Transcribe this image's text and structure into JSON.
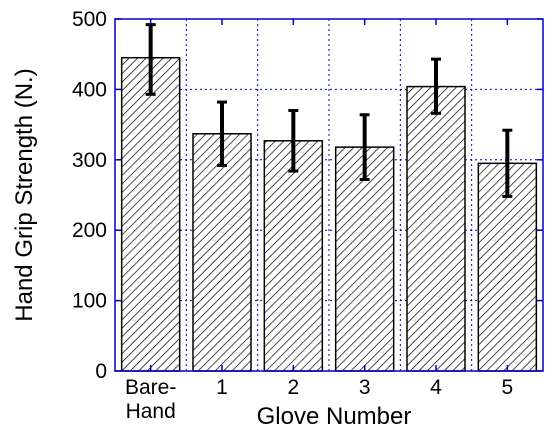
{
  "chart_data": {
    "type": "bar",
    "categories": [
      "Bare-Hand",
      "1",
      "2",
      "3",
      "4",
      "5"
    ],
    "category_label_lines": [
      [
        "Bare-",
        "Hand"
      ],
      [
        "1"
      ],
      [
        "2"
      ],
      [
        "3"
      ],
      [
        "4"
      ],
      [
        "5"
      ]
    ],
    "values": [
      445,
      337,
      327,
      318,
      404,
      295
    ],
    "error_upper": [
      492,
      382,
      370,
      364,
      443,
      342
    ],
    "error_lower": [
      393,
      292,
      284,
      272,
      366,
      248
    ],
    "xlabel": "Glove Number",
    "ylabel": "Hand Grip Strength (N.)",
    "ylim": [
      0,
      500
    ],
    "yticks": [
      0,
      100,
      200,
      300,
      400,
      500
    ],
    "grid": true,
    "colors": {
      "frame": "#0000cc",
      "grid": "#0000cc",
      "bar_stroke": "#000000",
      "hatch": "#000000",
      "error_bar": "#000000"
    }
  }
}
